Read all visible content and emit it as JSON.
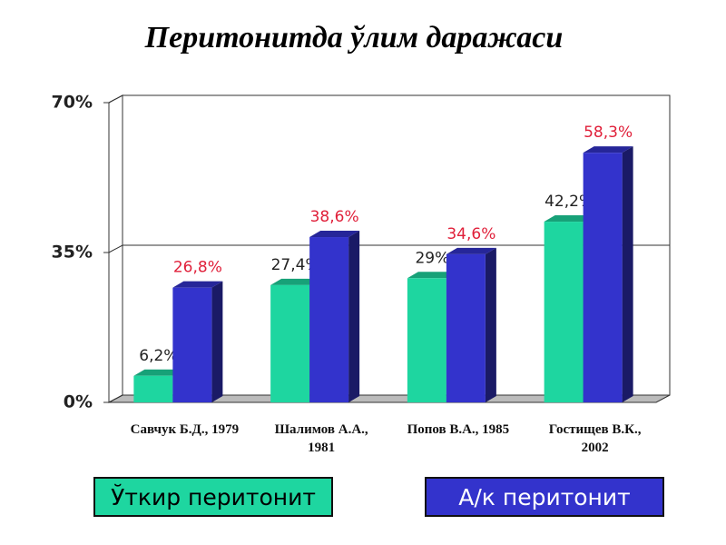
{
  "chart_data": {
    "type": "bar",
    "title": "Перитонитда ўлим даражаси",
    "categories": [
      "Савчук Б.Д., 1979",
      "Шалимов А.А., 1981",
      "Попов В.А., 1985",
      "Гостищев В.К., 2002"
    ],
    "series": [
      {
        "name": "Ўткир перитонит",
        "color": "#1ed6a0",
        "label_color": "#222222",
        "values": [
          6.2,
          27.4,
          29,
          42.2
        ],
        "value_labels": [
          "6,2%",
          "27,4%",
          "29%",
          "42,2%"
        ]
      },
      {
        "name": "А/к перитонит",
        "color": "#3333cc",
        "label_color": "#e0203a",
        "values": [
          26.8,
          38.6,
          34.6,
          58.3
        ],
        "value_labels": [
          "26,8%",
          "38,6%",
          "34,6%",
          "58,3%"
        ]
      }
    ],
    "ylim": [
      0,
      70
    ],
    "yticks": [
      {
        "value": 0,
        "label": "0%"
      },
      {
        "value": 35,
        "label": "35%"
      },
      {
        "value": 70,
        "label": "70%"
      }
    ],
    "grid": true
  }
}
